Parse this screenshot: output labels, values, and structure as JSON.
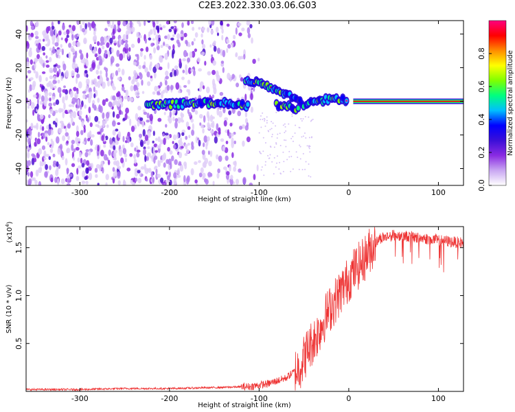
{
  "title": "C2E3.2022.330.03.06.G03",
  "chart_data": [
    {
      "type": "heatmap",
      "xlabel": "Height of straight line (km)",
      "ylabel": "Frequency (Hz)",
      "xlim": [
        -360,
        128
      ],
      "ylim": [
        -50,
        48
      ],
      "x_ticks": [
        -300,
        -200,
        -100,
        0,
        100
      ],
      "y_ticks": [
        -40,
        -20,
        0,
        20,
        40
      ],
      "colorbar": {
        "label": "Normalized spectral amplitude",
        "range": [
          0,
          1
        ],
        "ticks": [
          "0.0",
          "0.2",
          "0.4",
          "0.6",
          "0.8"
        ],
        "colormap": [
          "#ffffff",
          "#c9a7f2",
          "#8a2be2",
          "#3b0fd8",
          "#0000ff",
          "#00bfff",
          "#00ff7f",
          "#7fff00",
          "#ffff00",
          "#ff8c00",
          "#ff0000",
          "#ff007f"
        ]
      },
      "features": {
        "noise_region_x": [
          -360,
          -100
        ],
        "carrier_line": {
          "x": [
            5,
            128
          ],
          "y": 0
        },
        "branch_low": [
          [
            -225,
            -2
          ],
          [
            -200,
            -2
          ],
          [
            -170,
            -1
          ],
          [
            -140,
            -1
          ],
          [
            -110,
            -3
          ]
        ],
        "branch_high": [
          [
            -115,
            12
          ],
          [
            -100,
            12
          ],
          [
            -85,
            8
          ],
          [
            -70,
            4
          ],
          [
            -60,
            1
          ],
          [
            -50,
            -2
          ],
          [
            -40,
            -1
          ],
          [
            -25,
            1
          ],
          [
            -10,
            1
          ],
          [
            0,
            1
          ]
        ],
        "branch_mid": [
          [
            -80,
            -2
          ],
          [
            -65,
            -3
          ],
          [
            -55,
            -5
          ]
        ]
      }
    },
    {
      "type": "line",
      "xlabel": "Height of straight line (km)",
      "ylabel": "SNR (10 * v/v)",
      "y_multiplier": "(x10^4)",
      "xlim": [
        -360,
        128
      ],
      "ylim": [
        0,
        1.72
      ],
      "x_ticks": [
        -300,
        -200,
        -100,
        0,
        100
      ],
      "y_ticks": [
        0.5,
        1.0,
        1.5
      ],
      "y_tick_labels": [
        "0.5",
        "1.0",
        "1.5"
      ],
      "series": [
        {
          "color": "#ee3333",
          "x": [
            -360,
            -300,
            -250,
            -200,
            -150,
            -110,
            -90,
            -70,
            -55,
            -45,
            -35,
            -25,
            -15,
            -5,
            5,
            15,
            25,
            35,
            50,
            65,
            80,
            100,
            115,
            128
          ],
          "y": [
            0.02,
            0.02,
            0.03,
            0.03,
            0.04,
            0.05,
            0.08,
            0.14,
            0.25,
            0.45,
            0.6,
            0.8,
            0.95,
            1.1,
            1.25,
            1.35,
            1.5,
            1.6,
            1.63,
            1.62,
            1.6,
            1.58,
            1.56,
            1.55
          ]
        }
      ]
    }
  ]
}
